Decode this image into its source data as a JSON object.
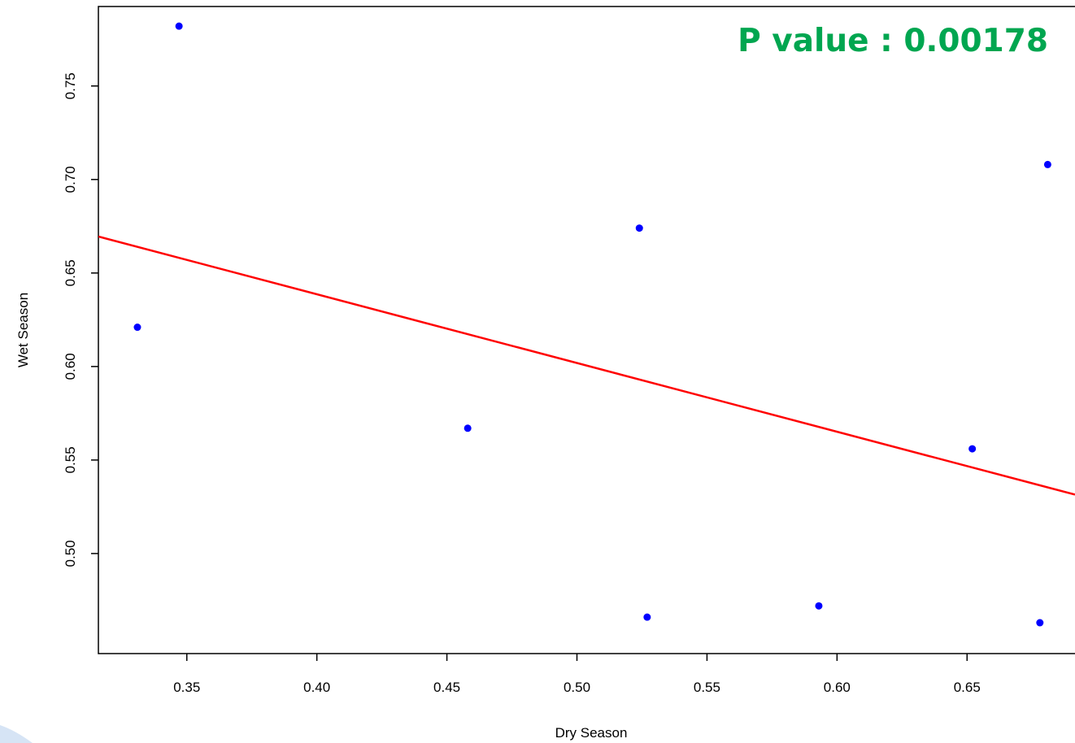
{
  "chart_data": {
    "type": "scatter",
    "title": "",
    "xlabel": "Dry Season",
    "ylabel": "Wet Season",
    "xlim": [
      0.316,
      0.6915
    ],
    "ylim": [
      0.4465,
      0.7925
    ],
    "x_ticks": [
      0.35,
      0.4,
      0.45,
      0.5,
      0.55,
      0.6,
      0.65
    ],
    "x_tick_labels": [
      "0.35",
      "0.40",
      "0.45",
      "0.50",
      "0.55",
      "0.60",
      "0.65"
    ],
    "y_ticks": [
      0.5,
      0.55,
      0.6,
      0.65,
      0.7,
      0.75
    ],
    "y_tick_labels": [
      "0.50",
      "0.55",
      "0.60",
      "0.65",
      "0.70",
      "0.75"
    ],
    "grid": false,
    "points": [
      {
        "x": 0.331,
        "y": 0.621
      },
      {
        "x": 0.347,
        "y": 0.782
      },
      {
        "x": 0.458,
        "y": 0.567
      },
      {
        "x": 0.524,
        "y": 0.674
      },
      {
        "x": 0.527,
        "y": 0.466
      },
      {
        "x": 0.593,
        "y": 0.472
      },
      {
        "x": 0.652,
        "y": 0.556
      },
      {
        "x": 0.678,
        "y": 0.463
      },
      {
        "x": 0.681,
        "y": 0.708
      }
    ],
    "point_color": "#0000ff",
    "regression_line": {
      "x": [
        0.316,
        0.6915
      ],
      "y": [
        0.6695,
        0.5315
      ],
      "color": "#ff0000"
    },
    "annotation": {
      "text": "P value : 0.00178",
      "color": "#00a650",
      "placement": "top-right"
    }
  }
}
